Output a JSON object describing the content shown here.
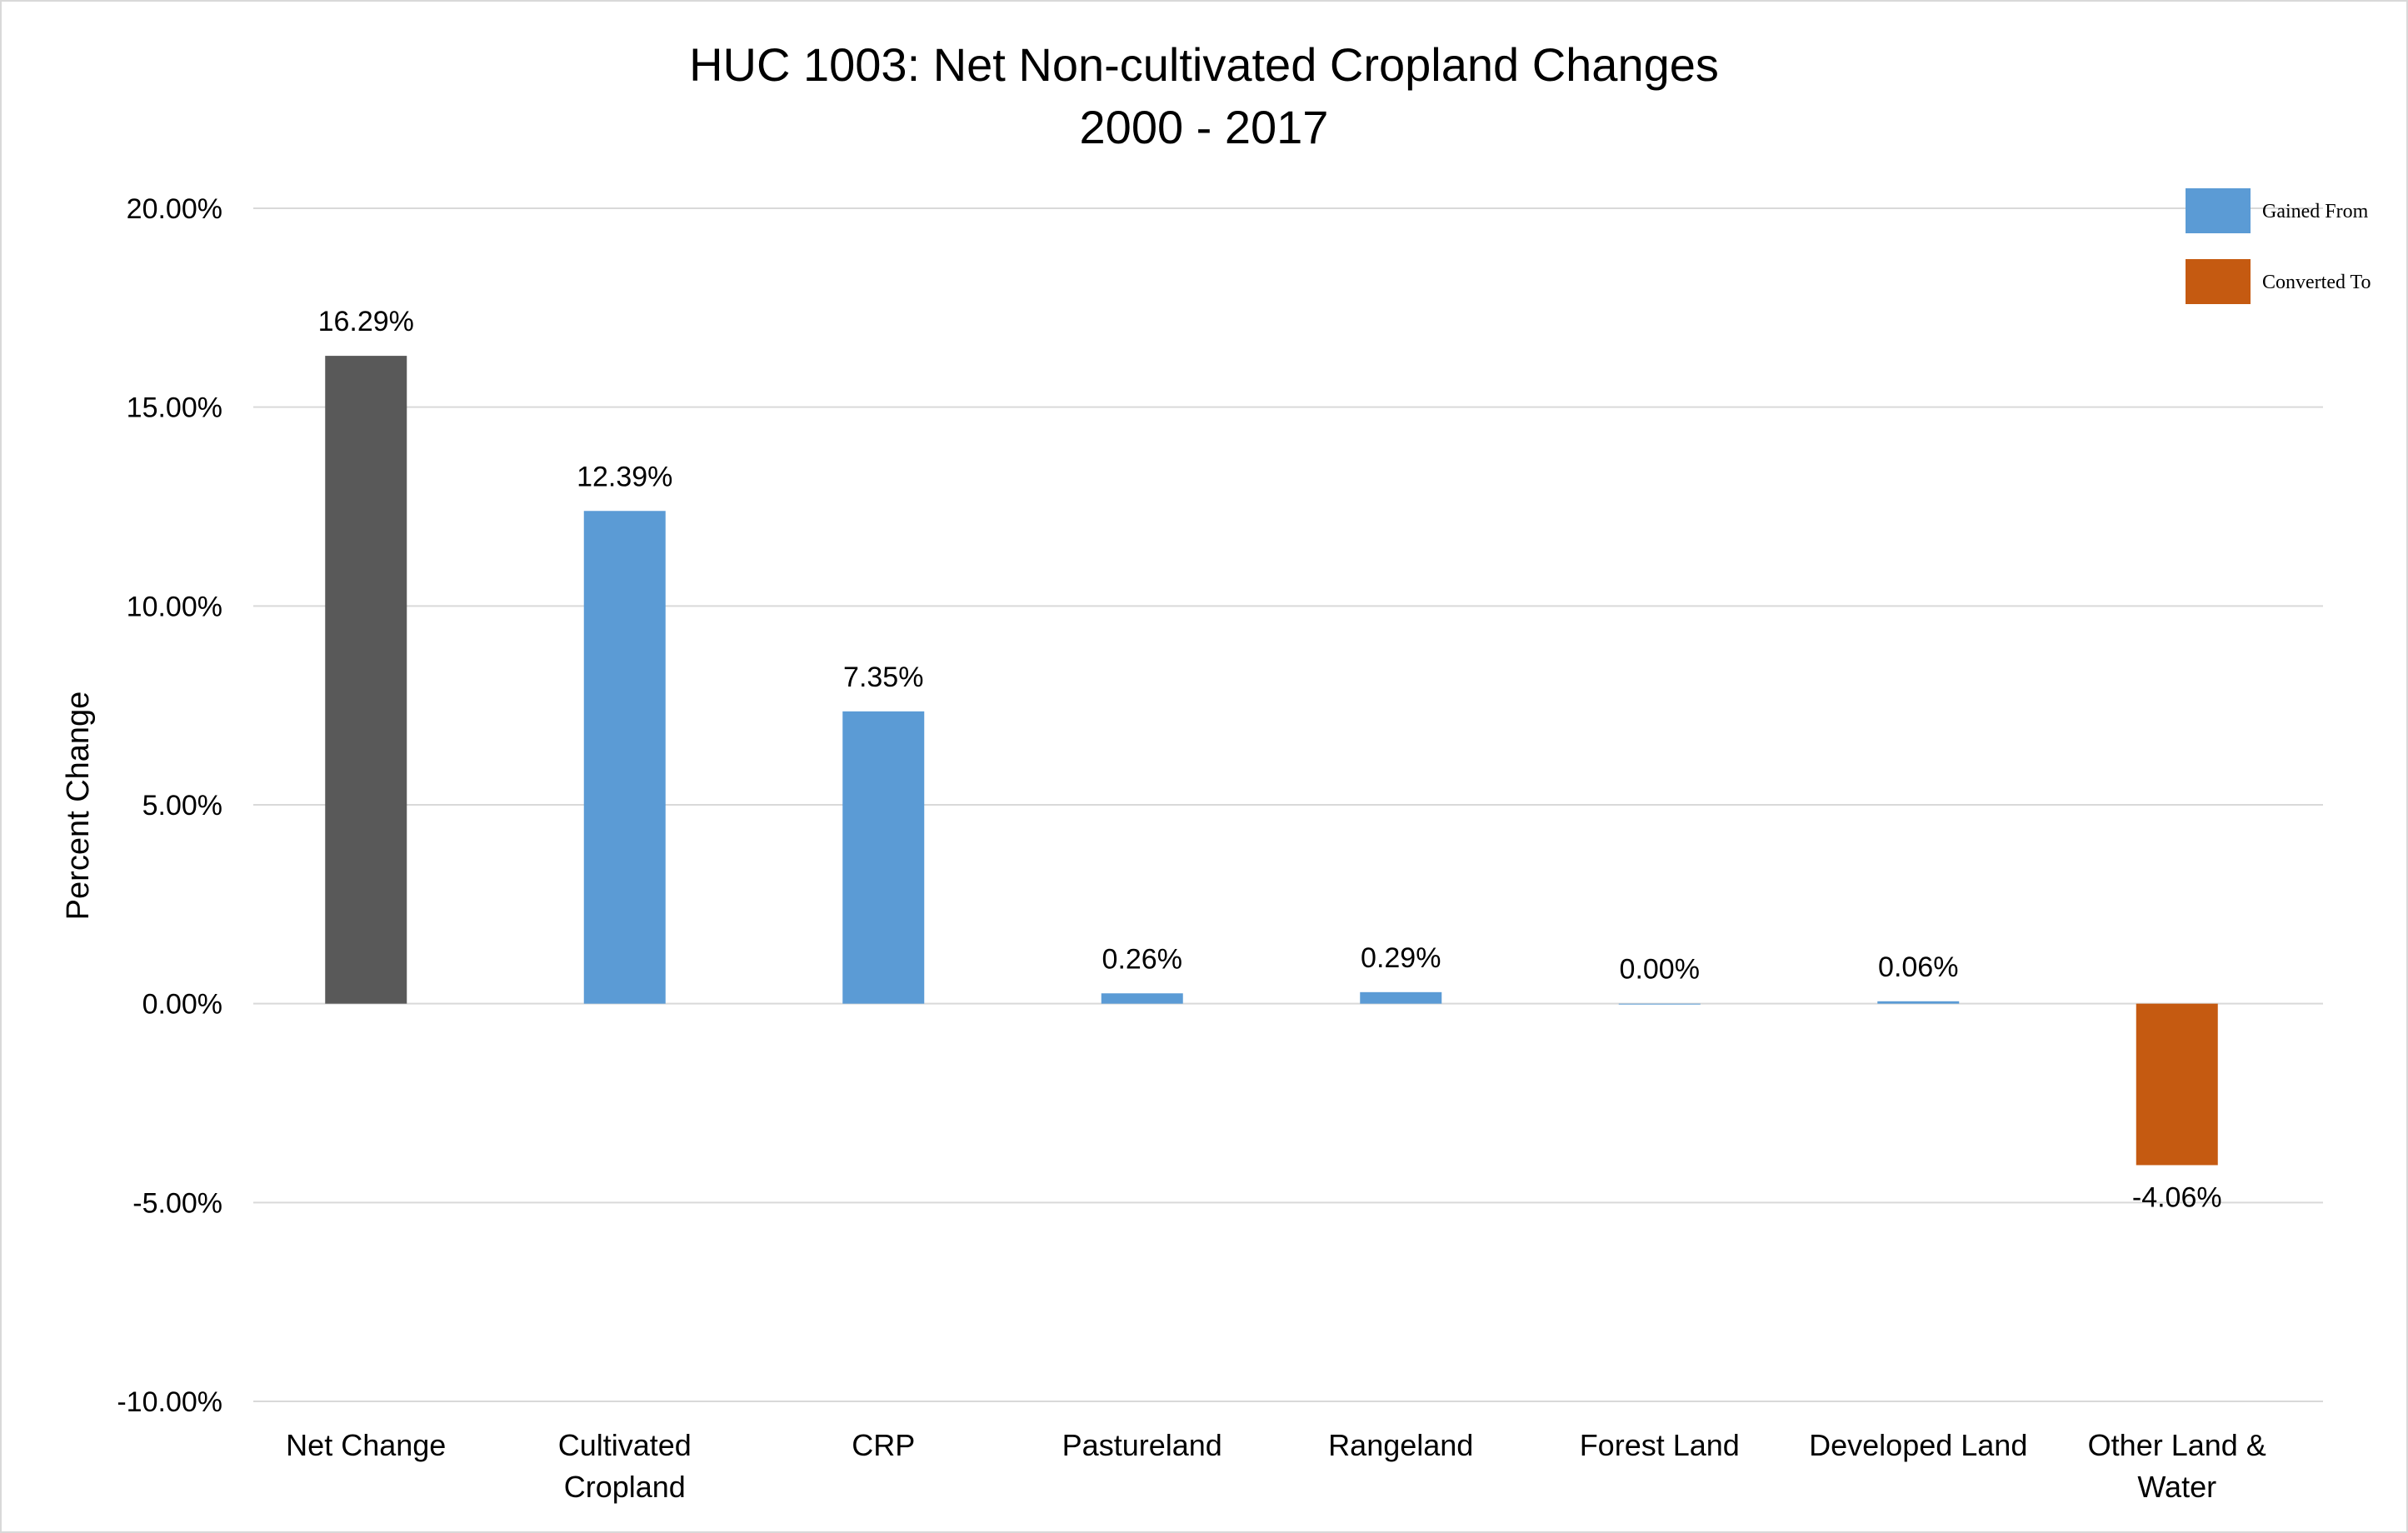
{
  "chart_data": {
    "type": "bar",
    "title_lines": [
      "HUC 1003: Net Non-cultivated Cropland Changes",
      "2000 - 2017"
    ],
    "ylabel": "Percent Change",
    "xlabel": "",
    "ylim": [
      -10,
      20
    ],
    "yticks": [
      20,
      15,
      10,
      5,
      0,
      -5,
      -10
    ],
    "ytick_labels": [
      "20.00%",
      "15.00%",
      "10.00%",
      "5.00%",
      "0.00%",
      "-5.00%",
      "-10.00%"
    ],
    "grid": true,
    "legend_position": "top-right",
    "legend": [
      {
        "name": "Gained From",
        "color": "#5b9bd5"
      },
      {
        "name": "Converted To",
        "color": "#c55a11"
      }
    ],
    "categories": [
      [
        "Net Change"
      ],
      [
        "Cultivated",
        "Cropland"
      ],
      [
        "CRP"
      ],
      [
        "Pastureland"
      ],
      [
        "Rangeland"
      ],
      [
        "Forest Land"
      ],
      [
        "Developed Land"
      ],
      [
        "Other Land &",
        "Water"
      ]
    ],
    "values": [
      16.29,
      12.39,
      7.35,
      0.26,
      0.29,
      0.0,
      0.06,
      -4.06
    ],
    "data_labels": [
      "16.29%",
      "12.39%",
      "7.35%",
      "0.26%",
      "0.29%",
      "0.00%",
      "0.06%",
      "-4.06%"
    ],
    "colors": [
      "#595959",
      "#5b9bd5",
      "#5b9bd5",
      "#5b9bd5",
      "#5b9bd5",
      "#5b9bd5",
      "#5b9bd5",
      "#c55a11"
    ]
  }
}
